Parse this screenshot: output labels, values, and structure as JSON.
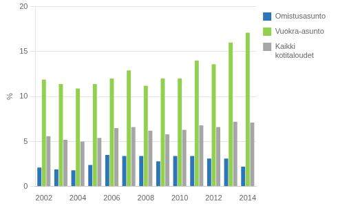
{
  "chart_data": {
    "type": "bar",
    "ylabel": "%",
    "categories": [
      "2002",
      null,
      "2004",
      null,
      "2006",
      null,
      "2008",
      null,
      "2010",
      null,
      "2012",
      null,
      "2014"
    ],
    "series": [
      {
        "name": "Omistusasunto",
        "color": "#2E75B6",
        "values": [
          2.1,
          1.9,
          1.8,
          2.4,
          3.5,
          3.4,
          3.4,
          2.8,
          3.4,
          3.4,
          3.1,
          3.1,
          2.2
        ]
      },
      {
        "name": "Vuokra-asunto",
        "color": "#92D050",
        "values": [
          11.9,
          11.4,
          10.9,
          11.4,
          12.0,
          12.9,
          11.2,
          12.0,
          12.0,
          14.0,
          13.6,
          16.0,
          17.1
        ]
      },
      {
        "name": "Kaikki\nkotitaloudet",
        "color": "#A6A6A6",
        "values": [
          5.6,
          5.2,
          5.0,
          5.4,
          6.5,
          6.6,
          6.2,
          5.8,
          6.3,
          6.8,
          6.6,
          7.2,
          7.1
        ]
      }
    ],
    "ylim": [
      0,
      20
    ],
    "yticks": [
      0,
      5,
      10,
      15,
      20
    ],
    "grid": true,
    "legend": "right"
  }
}
